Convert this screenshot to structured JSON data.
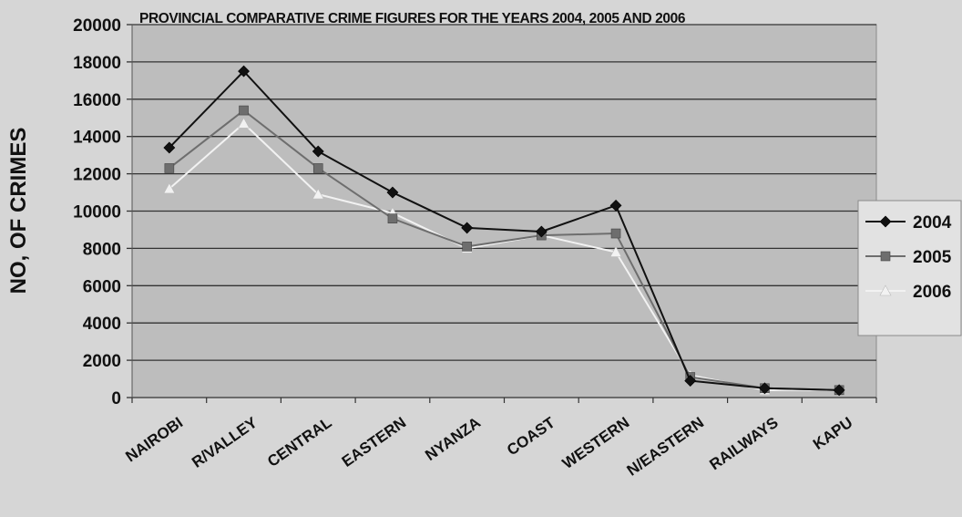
{
  "chart_data": {
    "type": "line",
    "title": "PROVINCIAL COMPARATIVE CRIME FIGURES FOR THE YEARS 2004, 2005 AND 2006",
    "ylabel": "NO, OF CRIMES",
    "xlabel": "",
    "ylim": [
      0,
      20000
    ],
    "yticks": [
      0,
      2000,
      4000,
      6000,
      8000,
      10000,
      12000,
      14000,
      16000,
      18000,
      20000
    ],
    "grid": true,
    "legend_position": "right",
    "categories": [
      "NAIROBI",
      "R/VALLEY",
      "CENTRAL",
      "EASTERN",
      "NYANZA",
      "COAST",
      "WESTERN",
      "N/EASTERN",
      "RAILWAYS",
      "KAPU"
    ],
    "series": [
      {
        "name": "2004",
        "color": "#111111",
        "marker": "diamond",
        "values": [
          13400,
          17500,
          13200,
          11000,
          9100,
          8900,
          10300,
          900,
          500,
          400
        ]
      },
      {
        "name": "2005",
        "color": "#6e6e6e",
        "marker": "square",
        "values": [
          12300,
          15400,
          12300,
          9600,
          8100,
          8700,
          8800,
          1100,
          500,
          400
        ]
      },
      {
        "name": "2006",
        "color": "#f2f2f2",
        "marker": "triangle",
        "values": [
          11200,
          14700,
          10900,
          9900,
          8000,
          8700,
          7800,
          1200,
          400,
          400
        ]
      }
    ]
  }
}
